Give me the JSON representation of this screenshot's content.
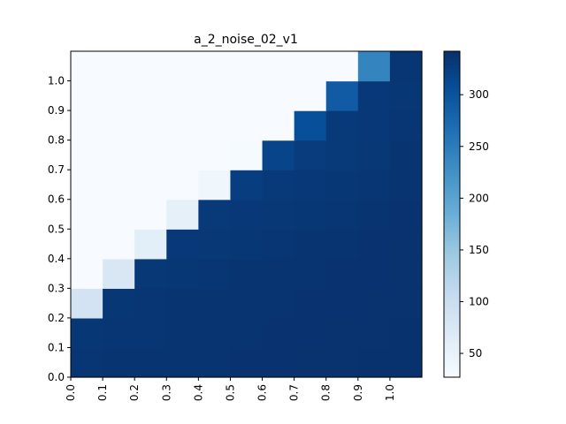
{
  "chart_data": {
    "type": "heatmap",
    "title": "a_2_noise_02_v1",
    "xlabel": "",
    "ylabel": "",
    "x_tick_labels": [
      "0.0",
      "0.1",
      "0.2",
      "0.3",
      "0.4",
      "0.5",
      "0.6",
      "0.7",
      "0.8",
      "0.9",
      "1.0"
    ],
    "y_tick_labels": [
      "0.0",
      "0.1",
      "0.2",
      "0.3",
      "0.4",
      "0.5",
      "0.6",
      "0.7",
      "0.8",
      "0.9",
      "1.0"
    ],
    "colormap": "Blues",
    "value_range": [
      27,
      342
    ],
    "colorbar_ticks": [
      50,
      100,
      150,
      200,
      250,
      300
    ],
    "grid": false,
    "rows_bottom_to_top": [
      [
        335,
        336,
        336,
        337,
        337,
        338,
        338,
        339,
        339,
        340,
        340
      ],
      [
        334,
        335,
        335,
        336,
        336,
        337,
        338,
        338,
        339,
        339,
        340
      ],
      [
        85,
        334,
        335,
        336,
        336,
        337,
        337,
        338,
        338,
        339,
        339
      ],
      [
        27,
        75,
        333,
        334,
        335,
        336,
        337,
        337,
        338,
        338,
        339
      ],
      [
        27,
        27,
        60,
        332,
        333,
        334,
        335,
        336,
        337,
        338,
        339
      ],
      [
        27,
        27,
        27,
        55,
        330,
        332,
        333,
        334,
        335,
        336,
        338
      ],
      [
        27,
        27,
        27,
        27,
        40,
        325,
        330,
        332,
        334,
        335,
        337
      ],
      [
        27,
        27,
        27,
        27,
        27,
        30,
        318,
        328,
        330,
        333,
        336
      ],
      [
        27,
        27,
        27,
        27,
        27,
        27,
        27,
        305,
        330,
        332,
        335
      ],
      [
        27,
        27,
        27,
        27,
        27,
        27,
        27,
        27,
        290,
        332,
        334
      ],
      [
        27,
        27,
        27,
        27,
        27,
        27,
        27,
        27,
        27,
        240,
        335
      ]
    ]
  }
}
